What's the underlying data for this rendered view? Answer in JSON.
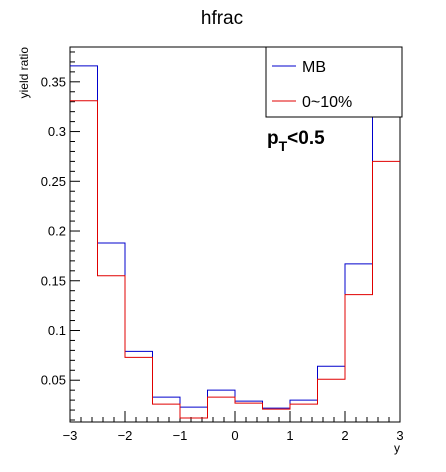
{
  "chart_data": {
    "type": "histogram",
    "title": "hfrac",
    "xlabel": "y",
    "ylabel": "yield ratio",
    "xlim": [
      -3,
      3
    ],
    "ylim": [
      0.008,
      0.385
    ],
    "x_ticks": [
      -3,
      -2,
      -1,
      0,
      1,
      2,
      3
    ],
    "x_tick_labels": [
      "−3",
      "−2",
      "−1",
      "0",
      "1",
      "2",
      "3"
    ],
    "y_ticks": [
      0.05,
      0.1,
      0.15,
      0.2,
      0.25,
      0.3,
      0.35
    ],
    "y_tick_labels": [
      "0.05",
      "0.1",
      "0.15",
      "0.2",
      "0.25",
      "0.3",
      "0.35"
    ],
    "bin_edges": [
      -3,
      -2.5,
      -2,
      -1.5,
      -1,
      -0.5,
      0,
      0.5,
      1,
      1.5,
      2,
      2.5,
      3
    ],
    "series": [
      {
        "name": "MB",
        "color": "#0000cc",
        "values": [
          0.366,
          0.188,
          0.079,
          0.033,
          0.023,
          0.04,
          0.029,
          0.022,
          0.03,
          0.064,
          0.167,
          0.385
        ]
      },
      {
        "name": "0~10%",
        "color": "#e00000",
        "values": [
          0.331,
          0.155,
          0.073,
          0.026,
          0.012,
          0.033,
          0.027,
          0.021,
          0.026,
          0.051,
          0.136,
          0.27
        ]
      }
    ],
    "legend_position": "top-right",
    "annotation_main": "p",
    "annotation_sub": "T",
    "annotation_tail": "<0.5"
  }
}
